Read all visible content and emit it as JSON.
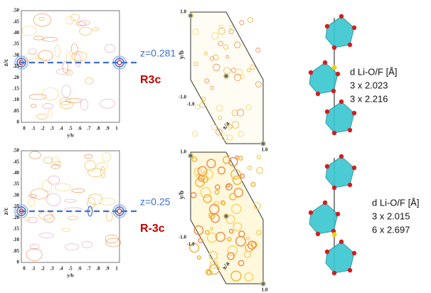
{
  "panels": [
    {
      "contour": {
        "yticks": [
          ".50",
          ".45",
          ".40",
          ".35",
          ".30",
          ".25",
          ".20",
          ".15",
          ".10",
          ".05",
          "0"
        ],
        "xticks": [
          "0",
          ".1",
          ".2",
          ".3",
          ".4",
          ".5",
          ".6",
          ".7",
          ".8",
          ".9",
          "1"
        ],
        "xlabel": "y/b",
        "ylabel": "z/c",
        "z_label": "z=0.281",
        "space_group": "R3c"
      },
      "map": {
        "y_top": "1.0",
        "y_bottom": "-1.0",
        "x_left": "-1.0",
        "x_right": "1.0",
        "ylabel": "y/b",
        "xlabel": "x/a"
      },
      "structure": {
        "title": "d Li-O/F [Å]",
        "lines": [
          "3 x 2.023",
          "3 x 2.216"
        ]
      }
    },
    {
      "contour": {
        "yticks": [
          ".50",
          ".45",
          ".40",
          ".35",
          ".30",
          ".25",
          ".20",
          ".15",
          ".10",
          ".05",
          "0"
        ],
        "xticks": [
          "0",
          ".1",
          ".2",
          ".3",
          ".4",
          ".5",
          ".6",
          ".7",
          ".8",
          ".9",
          "1"
        ],
        "xlabel": "y/b",
        "ylabel": "z/c",
        "z_label": "z=0.25",
        "space_group": "R-3c"
      },
      "map": {
        "y_top": "1.0",
        "y_bottom": "-1.0",
        "x_left": "-1.0",
        "x_right": "1.0",
        "ylabel": "y/b",
        "xlabel": "x/a"
      },
      "structure": {
        "title": "d Li-O/F [Å]",
        "lines": [
          "3 x 2.015",
          "6 x 2.697"
        ]
      }
    }
  ]
}
